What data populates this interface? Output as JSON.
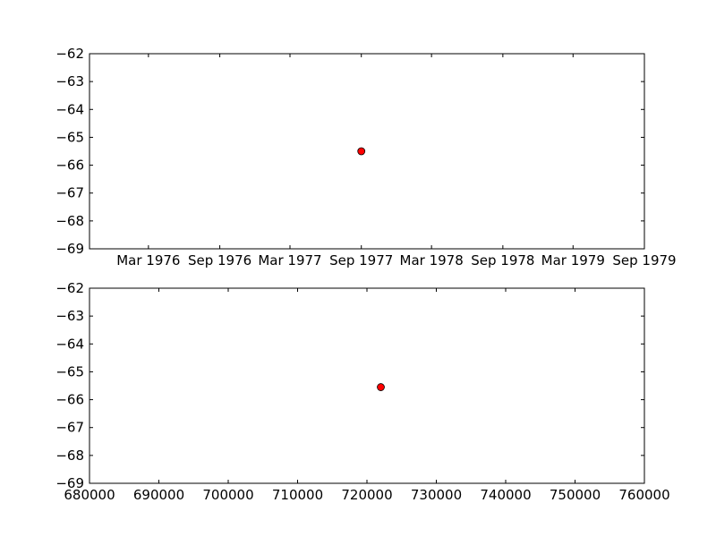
{
  "chart_data": [
    {
      "type": "scatter",
      "title": "",
      "xlabel": "",
      "ylabel": "",
      "x_axis_type": "date",
      "xlim": [
        "1975-10-01",
        "1979-09-01"
      ],
      "ylim": [
        -69,
        -62
      ],
      "y_ticks": [
        "−69",
        "−68",
        "−67",
        "−66",
        "−65",
        "−64",
        "−63",
        "−62"
      ],
      "x_ticks": [
        "Mar 1976",
        "Sep 1976",
        "Mar 1977",
        "Sep 1977",
        "Mar 1978",
        "Sep 1978",
        "Mar 1979",
        "Sep 1979"
      ],
      "grid": false,
      "marker_color": "#ff0000",
      "points": [
        {
          "x": "1977-09-01",
          "y": -65.5
        }
      ]
    },
    {
      "type": "scatter",
      "title": "",
      "xlabel": "",
      "ylabel": "",
      "x_axis_type": "linear",
      "xlim": [
        680000,
        760000
      ],
      "ylim": [
        -69,
        -62
      ],
      "y_ticks": [
        "−69",
        "−68",
        "−67",
        "−66",
        "−65",
        "−64",
        "−63",
        "−62"
      ],
      "x_ticks": [
        "680000",
        "690000",
        "700000",
        "710000",
        "720000",
        "730000",
        "740000",
        "750000",
        "760000"
      ],
      "grid": false,
      "marker_color": "#ff0000",
      "points": [
        {
          "x": 722000,
          "y": -65.55
        }
      ]
    }
  ]
}
